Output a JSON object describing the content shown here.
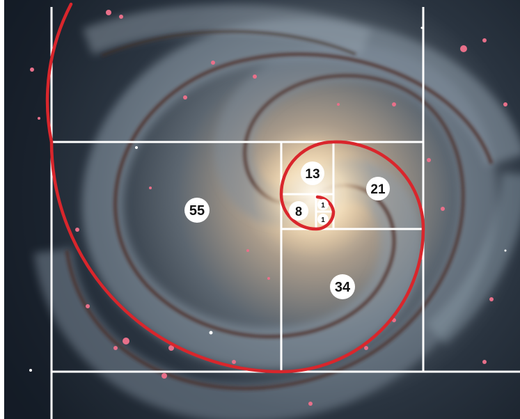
{
  "image": {
    "subject": "spiral-galaxy-with-fibonacci-overlay",
    "colors": {
      "spiral": "#d9262c",
      "grid": "#ffffff",
      "space_dark": "#16202c",
      "core": "#f7ead2",
      "dust_lane": "#4a2a22",
      "star_region": "#e8708a",
      "label_bg": "#ffffff",
      "label_text": "#111111"
    }
  },
  "fibonacci": {
    "labels": [
      "55",
      "34",
      "21",
      "13",
      "8",
      "1",
      "1"
    ]
  }
}
